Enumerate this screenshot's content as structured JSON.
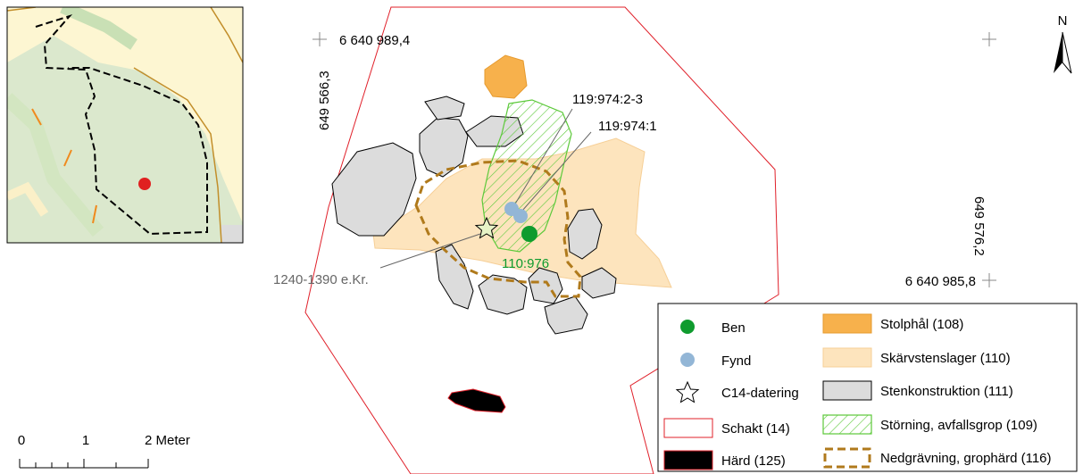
{
  "coords": {
    "top_left_n": "6 640 989,4",
    "left_e": "649 566,3",
    "right_e": "649 576,2",
    "bottom_right_n": "6 640 985,8"
  },
  "north_label": "N",
  "labels": {
    "find_2_3": "119:974:2-3",
    "find_1": "119:974:1",
    "bone": "110:976",
    "c14": "1240-1390 e.Kr."
  },
  "scale": {
    "ticks": [
      "0",
      "1",
      "2 Meter"
    ]
  },
  "legend": {
    "left": [
      {
        "label": "Ben",
        "symbol": "green-dot"
      },
      {
        "label": "Fynd",
        "symbol": "blue-dot"
      },
      {
        "label": "C14-datering",
        "symbol": "star"
      },
      {
        "label": "Schakt (14)",
        "symbol": "red-outline"
      },
      {
        "label": "Härd (125)",
        "symbol": "black-fill"
      }
    ],
    "right": [
      {
        "label": "Stolphål (108)",
        "symbol": "orange-fill"
      },
      {
        "label": "Skärvstenslager (110)",
        "symbol": "light-orange-fill"
      },
      {
        "label": "Stenkonstruktion (111)",
        "symbol": "grey-fill"
      },
      {
        "label": "Störning, avfallsgrop (109)",
        "symbol": "green-hatch"
      },
      {
        "label": "Nedgrävning, grophärd (116)",
        "symbol": "brown-dashed"
      }
    ]
  },
  "colors": {
    "trench": "#e0202a",
    "posthole": "#f7b14c",
    "fire_cracked_layer": "#fde4bd",
    "stone": "#dcdcdc",
    "disturbance": "#5cc93a",
    "pit": "#b07a1c",
    "bone": "#0f9b2e",
    "find": "#93b6d6",
    "inset_bg": "#fdf6d2",
    "inset_green": "#dbe8cd"
  }
}
